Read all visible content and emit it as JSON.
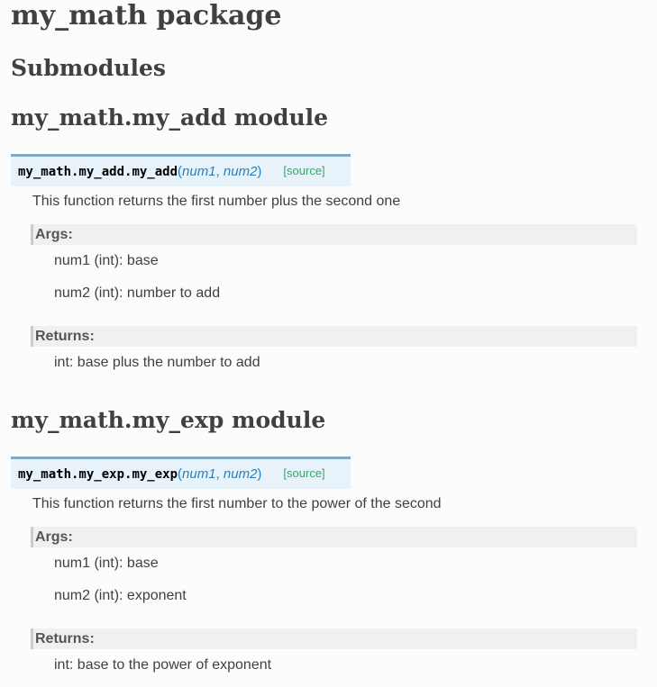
{
  "page": {
    "title": "my_math package",
    "submodules_heading": "Submodules",
    "background_color": "#fcfcfc"
  },
  "colors": {
    "heading_text": "#404040",
    "body_text": "#404040",
    "signature_background": "#e7f2fa",
    "signature_top_border": "#6ab0de",
    "signature_name": "#000000",
    "signature_params": "#2980b9",
    "source_link": "#27ae60",
    "field_label_background": "#f0f0f0",
    "field_label_border": "#cccccc",
    "field_label_text": "#555555"
  },
  "modules": [
    {
      "heading": "my_math.my_add module",
      "signature": {
        "prefix": "my_math.my_add.",
        "name": "my_add",
        "paren_open": "(",
        "params": [
          "num1",
          "num2"
        ],
        "param_separator": ", ",
        "paren_close": ")",
        "source_label": "[source]"
      },
      "description": "This function returns the first number plus the second one",
      "fields": {
        "args_label": "Args:",
        "args": [
          "num1 (int): base",
          "num2 (int): number to add"
        ],
        "returns_label": "Returns:",
        "returns": "int: base plus the number to add"
      }
    },
    {
      "heading": "my_math.my_exp module",
      "signature": {
        "prefix": "my_math.my_exp.",
        "name": "my_exp",
        "paren_open": "(",
        "params": [
          "num1",
          "num2"
        ],
        "param_separator": ", ",
        "paren_close": ")",
        "source_label": "[source]"
      },
      "description": "This function returns the first number to the power of the second",
      "fields": {
        "args_label": "Args:",
        "args": [
          "num1 (int): base",
          "num2 (int): exponent"
        ],
        "returns_label": "Returns:",
        "returns": "int: base to the power of exponent"
      }
    }
  ]
}
